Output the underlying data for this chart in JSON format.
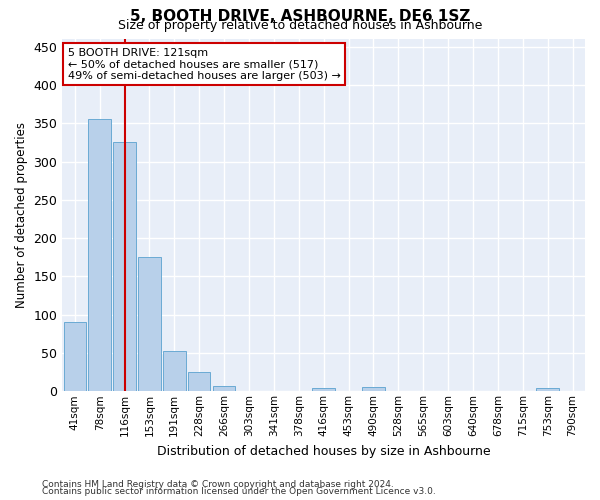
{
  "title": "5, BOOTH DRIVE, ASHBOURNE, DE6 1SZ",
  "subtitle": "Size of property relative to detached houses in Ashbourne",
  "xlabel": "Distribution of detached houses by size in Ashbourne",
  "ylabel": "Number of detached properties",
  "bar_color": "#b8d0ea",
  "bar_edge_color": "#6aaad4",
  "bg_color": "#e8eef8",
  "grid_color": "#ffffff",
  "categories": [
    "41sqm",
    "78sqm",
    "116sqm",
    "153sqm",
    "191sqm",
    "228sqm",
    "266sqm",
    "303sqm",
    "341sqm",
    "378sqm",
    "416sqm",
    "453sqm",
    "490sqm",
    "528sqm",
    "565sqm",
    "603sqm",
    "640sqm",
    "678sqm",
    "715sqm",
    "753sqm",
    "790sqm"
  ],
  "values": [
    91,
    355,
    325,
    175,
    53,
    25,
    7,
    0,
    0,
    0,
    4,
    0,
    5,
    0,
    0,
    0,
    0,
    0,
    0,
    4,
    0
  ],
  "ylim": [
    0,
    460
  ],
  "yticks": [
    0,
    50,
    100,
    150,
    200,
    250,
    300,
    350,
    400,
    450
  ],
  "vline_x": 2,
  "vline_color": "#cc0000",
  "annotation_line1": "5 BOOTH DRIVE: 121sqm",
  "annotation_line2": "← 50% of detached houses are smaller (517)",
  "annotation_line3": "49% of semi-detached houses are larger (503) →",
  "annotation_box_color": "#ffffff",
  "annotation_box_edge": "#cc0000",
  "footer_line1": "Contains HM Land Registry data © Crown copyright and database right 2024.",
  "footer_line2": "Contains public sector information licensed under the Open Government Licence v3.0."
}
